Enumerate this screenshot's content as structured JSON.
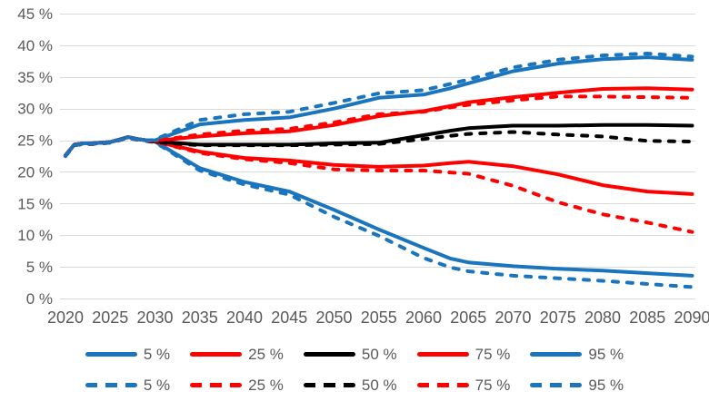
{
  "chart_data": {
    "type": "line",
    "title": "",
    "xlabel": "",
    "ylabel": "",
    "x": [
      2020,
      2021,
      2022,
      2023,
      2024,
      2025,
      2026,
      2027,
      2028,
      2029,
      2030,
      2035,
      2040,
      2045,
      2050,
      2055,
      2060,
      2063,
      2065,
      2070,
      2075,
      2080,
      2085,
      2090
    ],
    "series": [
      {
        "name": "5 %",
        "style": "solid",
        "color": "#1B75BC",
        "values": [
          22.6,
          24.3,
          24.5,
          24.5,
          24.6,
          24.7,
          25.1,
          25.5,
          25.2,
          25.0,
          24.8,
          20.6,
          18.4,
          16.9,
          14.0,
          10.9,
          8.0,
          6.3,
          5.7,
          5.1,
          4.7,
          4.4,
          4.0,
          3.6
        ]
      },
      {
        "name": "25 %",
        "style": "solid",
        "color": "#FE0000",
        "values": [
          22.6,
          24.3,
          24.5,
          24.5,
          24.6,
          24.7,
          25.1,
          25.5,
          25.2,
          25.0,
          24.8,
          23.2,
          22.2,
          21.8,
          21.1,
          20.8,
          21.0,
          21.4,
          21.6,
          20.9,
          19.6,
          17.9,
          16.9,
          16.5
        ]
      },
      {
        "name": "50 %",
        "style": "solid",
        "color": "#000000",
        "values": [
          22.6,
          24.3,
          24.5,
          24.5,
          24.6,
          24.7,
          25.1,
          25.5,
          25.2,
          25.0,
          24.8,
          24.3,
          24.3,
          24.3,
          24.5,
          24.6,
          25.8,
          26.5,
          26.9,
          27.3,
          27.3,
          27.4,
          27.4,
          27.3
        ]
      },
      {
        "name": "75 %",
        "style": "solid",
        "color": "#FE0000",
        "values": [
          22.6,
          24.3,
          24.5,
          24.5,
          24.6,
          24.7,
          25.1,
          25.5,
          25.2,
          25.0,
          24.9,
          25.6,
          26.1,
          26.4,
          27.4,
          28.8,
          29.6,
          30.4,
          31.0,
          31.8,
          32.5,
          33.1,
          33.2,
          33.0
        ]
      },
      {
        "name": "95 %",
        "style": "solid",
        "color": "#1B75BC",
        "values": [
          22.6,
          24.3,
          24.5,
          24.5,
          24.6,
          24.7,
          25.1,
          25.5,
          25.2,
          25.0,
          25.0,
          27.5,
          28.2,
          28.6,
          30.0,
          31.7,
          32.2,
          33.2,
          34.0,
          35.9,
          37.1,
          37.8,
          38.1,
          37.7
        ]
      },
      {
        "name": "5 %",
        "style": "dashed",
        "color": "#1B75BC",
        "values": [
          22.5,
          24.2,
          24.4,
          24.4,
          24.5,
          24.6,
          25.0,
          25.4,
          25.1,
          24.9,
          24.7,
          20.2,
          18.0,
          16.4,
          12.9,
          9.9,
          6.4,
          4.9,
          4.3,
          3.6,
          3.2,
          2.8,
          2.3,
          1.8
        ]
      },
      {
        "name": "25 %",
        "style": "dashed",
        "color": "#FE0000",
        "values": [
          22.5,
          24.2,
          24.4,
          24.4,
          24.5,
          24.6,
          25.0,
          25.4,
          25.1,
          24.9,
          24.8,
          23.0,
          22.0,
          21.4,
          20.4,
          20.2,
          20.2,
          19.9,
          19.7,
          17.8,
          15.2,
          13.3,
          12.0,
          10.5
        ]
      },
      {
        "name": "50 %",
        "style": "dashed",
        "color": "#000000",
        "values": [
          22.5,
          24.2,
          24.4,
          24.4,
          24.5,
          24.6,
          25.0,
          25.4,
          25.1,
          24.9,
          24.7,
          24.2,
          24.2,
          24.2,
          24.3,
          24.4,
          25.2,
          25.7,
          26.0,
          26.3,
          25.9,
          25.6,
          24.9,
          24.8
        ]
      },
      {
        "name": "75 %",
        "style": "dashed",
        "color": "#FE0000",
        "values": [
          22.5,
          24.2,
          24.4,
          24.4,
          24.5,
          24.6,
          25.0,
          25.4,
          25.1,
          24.9,
          24.9,
          25.9,
          26.5,
          26.8,
          27.8,
          29.1,
          29.5,
          30.2,
          30.6,
          31.3,
          31.9,
          31.9,
          31.8,
          31.7
        ]
      },
      {
        "name": "95 %",
        "style": "dashed",
        "color": "#1B75BC",
        "values": [
          22.5,
          24.2,
          24.4,
          24.4,
          24.5,
          24.6,
          25.0,
          25.4,
          25.1,
          24.9,
          25.1,
          28.2,
          29.1,
          29.5,
          30.9,
          32.4,
          32.9,
          33.9,
          34.6,
          36.5,
          37.7,
          38.4,
          38.7,
          38.2
        ]
      }
    ],
    "ylim": [
      0,
      45
    ],
    "xlim": [
      2020,
      2090
    ],
    "yticks": [
      {
        "v": 0,
        "label": "0 %"
      },
      {
        "v": 5,
        "label": "5 %"
      },
      {
        "v": 10,
        "label": "10 %"
      },
      {
        "v": 15,
        "label": "15 %"
      },
      {
        "v": 20,
        "label": "20 %"
      },
      {
        "v": 25,
        "label": "25 %"
      },
      {
        "v": 30,
        "label": "30 %"
      },
      {
        "v": 35,
        "label": "35 %"
      },
      {
        "v": 40,
        "label": "40 %"
      },
      {
        "v": 45,
        "label": "45 %"
      }
    ],
    "xticks": [
      {
        "v": 2020,
        "label": "2020"
      },
      {
        "v": 2025,
        "label": "2025"
      },
      {
        "v": 2030,
        "label": "2030"
      },
      {
        "v": 2035,
        "label": "2035"
      },
      {
        "v": 2040,
        "label": "2040"
      },
      {
        "v": 2045,
        "label": "2045"
      },
      {
        "v": 2050,
        "label": "2050"
      },
      {
        "v": 2055,
        "label": "2055"
      },
      {
        "v": 2060,
        "label": "2060"
      },
      {
        "v": 2065,
        "label": "2065"
      },
      {
        "v": 2070,
        "label": "2070"
      },
      {
        "v": 2075,
        "label": "2075"
      },
      {
        "v": 2080,
        "label": "2080"
      },
      {
        "v": 2085,
        "label": "2085"
      },
      {
        "v": 2090,
        "label": "2090"
      }
    ],
    "grid": true,
    "legend_position": "bottom"
  },
  "legend": {
    "rows": [
      {
        "style": "solid",
        "items": [
          {
            "label": "5 %",
            "color": "#1B75BC"
          },
          {
            "label": "25 %",
            "color": "#FE0000"
          },
          {
            "label": "50 %",
            "color": "#000000"
          },
          {
            "label": "75 %",
            "color": "#FE0000"
          },
          {
            "label": "95 %",
            "color": "#1B75BC"
          }
        ]
      },
      {
        "style": "dashed",
        "items": [
          {
            "label": "5 %",
            "color": "#1B75BC"
          },
          {
            "label": "25 %",
            "color": "#FE0000"
          },
          {
            "label": "50 %",
            "color": "#000000"
          },
          {
            "label": "75 %",
            "color": "#FE0000"
          },
          {
            "label": "95 %",
            "color": "#1B75BC"
          }
        ]
      }
    ]
  },
  "colors": {
    "background": "#FFFFFF",
    "grid": "#D9D9D9",
    "axis_text": "#595959",
    "blue": "#1B75BC",
    "red": "#FE0000",
    "black": "#000000"
  }
}
